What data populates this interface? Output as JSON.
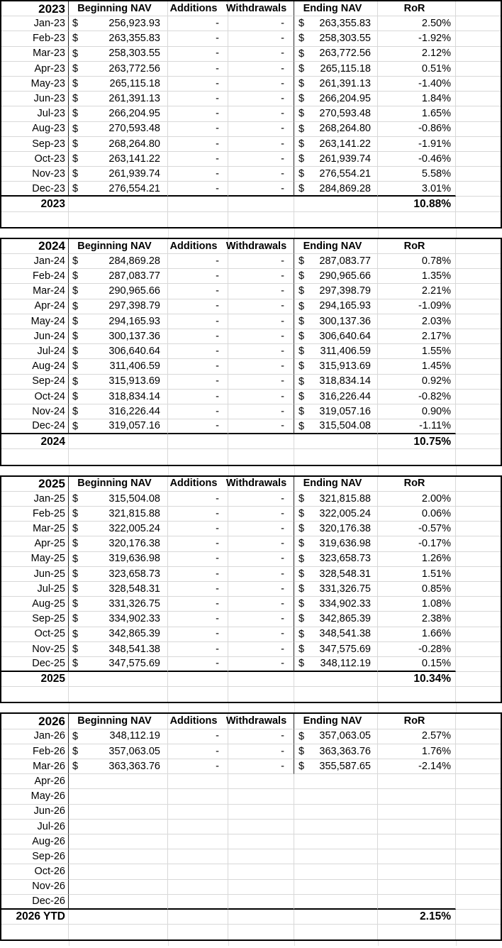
{
  "currency": "$",
  "columns": {
    "beginning_nav": "Beginning NAV",
    "additions": "Additions",
    "withdrawals": "Withdrawals",
    "ending_nav": "Ending NAV",
    "ror": "RoR"
  },
  "tables": [
    {
      "year": "2023",
      "total_label": "2023",
      "total_ror": "10.88%",
      "rows": [
        [
          "Jan-23",
          "256,923.93",
          "-",
          "-",
          "263,355.83",
          "2.50%"
        ],
        [
          "Feb-23",
          "263,355.83",
          "-",
          "-",
          "258,303.55",
          "-1.92%"
        ],
        [
          "Mar-23",
          "258,303.55",
          "-",
          "-",
          "263,772.56",
          "2.12%"
        ],
        [
          "Apr-23",
          "263,772.56",
          "-",
          "-",
          "265,115.18",
          "0.51%"
        ],
        [
          "May-23",
          "265,115.18",
          "-",
          "-",
          "261,391.13",
          "-1.40%"
        ],
        [
          "Jun-23",
          "261,391.13",
          "-",
          "-",
          "266,204.95",
          "1.84%"
        ],
        [
          "Jul-23",
          "266,204.95",
          "-",
          "-",
          "270,593.48",
          "1.65%"
        ],
        [
          "Aug-23",
          "270,593.48",
          "-",
          "-",
          "268,264.80",
          "-0.86%"
        ],
        [
          "Sep-23",
          "268,264.80",
          "-",
          "-",
          "263,141.22",
          "-1.91%"
        ],
        [
          "Oct-23",
          "263,141.22",
          "-",
          "-",
          "261,939.74",
          "-0.46%"
        ],
        [
          "Nov-23",
          "261,939.74",
          "-",
          "-",
          "276,554.21",
          "5.58%"
        ],
        [
          "Dec-23",
          "276,554.21",
          "-",
          "-",
          "284,869.28",
          "3.01%"
        ]
      ]
    },
    {
      "year": "2024",
      "total_label": "2024",
      "total_ror": "10.75%",
      "rows": [
        [
          "Jan-24",
          "284,869.28",
          "-",
          "-",
          "287,083.77",
          "0.78%"
        ],
        [
          "Feb-24",
          "287,083.77",
          "-",
          "-",
          "290,965.66",
          "1.35%"
        ],
        [
          "Mar-24",
          "290,965.66",
          "-",
          "-",
          "297,398.79",
          "2.21%"
        ],
        [
          "Apr-24",
          "297,398.79",
          "-",
          "-",
          "294,165.93",
          "-1.09%"
        ],
        [
          "May-24",
          "294,165.93",
          "-",
          "-",
          "300,137.36",
          "2.03%"
        ],
        [
          "Jun-24",
          "300,137.36",
          "-",
          "-",
          "306,640.64",
          "2.17%"
        ],
        [
          "Jul-24",
          "306,640.64",
          "-",
          "-",
          "311,406.59",
          "1.55%"
        ],
        [
          "Aug-24",
          "311,406.59",
          "-",
          "-",
          "315,913.69",
          "1.45%"
        ],
        [
          "Sep-24",
          "315,913.69",
          "-",
          "-",
          "318,834.14",
          "0.92%"
        ],
        [
          "Oct-24",
          "318,834.14",
          "-",
          "-",
          "316,226.44",
          "-0.82%"
        ],
        [
          "Nov-24",
          "316,226.44",
          "-",
          "-",
          "319,057.16",
          "0.90%"
        ],
        [
          "Dec-24",
          "319,057.16",
          "-",
          "-",
          "315,504.08",
          "-1.11%"
        ]
      ]
    },
    {
      "year": "2025",
      "total_label": "2025",
      "total_ror": "10.34%",
      "rows": [
        [
          "Jan-25",
          "315,504.08",
          "-",
          "-",
          "321,815.88",
          "2.00%"
        ],
        [
          "Feb-25",
          "321,815.88",
          "-",
          "-",
          "322,005.24",
          "0.06%"
        ],
        [
          "Mar-25",
          "322,005.24",
          "-",
          "-",
          "320,176.38",
          "-0.57%"
        ],
        [
          "Apr-25",
          "320,176.38",
          "-",
          "-",
          "319,636.98",
          "-0.17%"
        ],
        [
          "May-25",
          "319,636.98",
          "-",
          "-",
          "323,658.73",
          "1.26%"
        ],
        [
          "Jun-25",
          "323,658.73",
          "-",
          "-",
          "328,548.31",
          "1.51%"
        ],
        [
          "Jul-25",
          "328,548.31",
          "-",
          "-",
          "331,326.75",
          "0.85%"
        ],
        [
          "Aug-25",
          "331,326.75",
          "-",
          "-",
          "334,902.33",
          "1.08%"
        ],
        [
          "Sep-25",
          "334,902.33",
          "-",
          "-",
          "342,865.39",
          "2.38%"
        ],
        [
          "Oct-25",
          "342,865.39",
          "-",
          "-",
          "348,541.38",
          "1.66%"
        ],
        [
          "Nov-25",
          "348,541.38",
          "-",
          "-",
          "347,575.69",
          "-0.28%"
        ],
        [
          "Dec-25",
          "347,575.69",
          "-",
          "-",
          "348,112.19",
          "0.15%"
        ]
      ]
    },
    {
      "year": "2026",
      "total_label": "2026 YTD",
      "total_ror": "2.15%",
      "rows": [
        [
          "Jan-26",
          "348,112.19",
          "-",
          "-",
          "357,063.05",
          "2.57%"
        ],
        [
          "Feb-26",
          "357,063.05",
          "-",
          "-",
          "363,363.76",
          "1.76%"
        ],
        [
          "Mar-26",
          "363,363.76",
          "-",
          "-",
          "355,587.65",
          "-2.14%"
        ],
        [
          "Apr-26",
          "",
          "",
          "",
          "",
          ""
        ],
        [
          "May-26",
          "",
          "",
          "",
          "",
          ""
        ],
        [
          "Jun-26",
          "",
          "",
          "",
          "",
          ""
        ],
        [
          "Jul-26",
          "",
          "",
          "",
          "",
          ""
        ],
        [
          "Aug-26",
          "",
          "",
          "",
          "",
          ""
        ],
        [
          "Sep-26",
          "",
          "",
          "",
          "",
          ""
        ],
        [
          "Oct-26",
          "",
          "",
          "",
          "",
          ""
        ],
        [
          "Nov-26",
          "",
          "",
          "",
          "",
          ""
        ],
        [
          "Dec-26",
          "",
          "",
          "",
          "",
          ""
        ]
      ]
    }
  ]
}
